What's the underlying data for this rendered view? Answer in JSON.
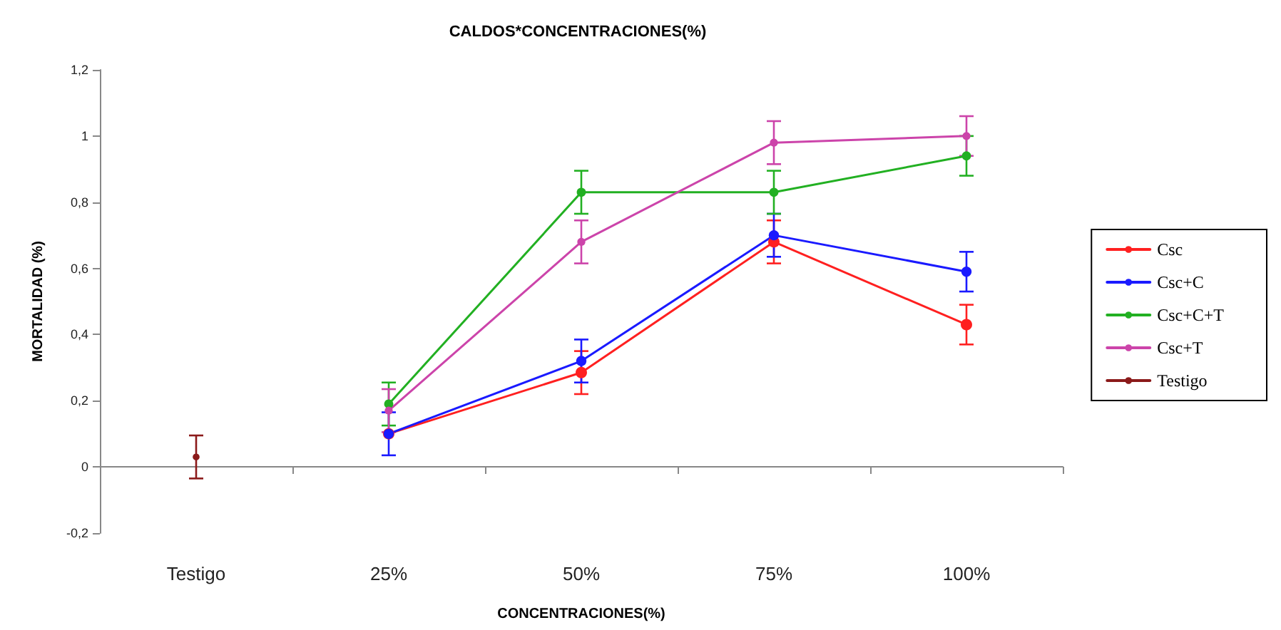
{
  "chart_data": {
    "type": "line",
    "title": "CALDOS*CONCENTRACIONES(%)",
    "xlabel": "CONCENTRACIONES(%)",
    "ylabel": "MORTALIDAD (%)",
    "categories": [
      "Testigo",
      "25%",
      "50%",
      "75%",
      "100%"
    ],
    "series": [
      {
        "name": "Csc",
        "color": "#ff2020",
        "values": [
          null,
          0.1,
          0.285,
          0.68,
          0.43
        ],
        "errors": [
          null,
          null,
          0.065,
          0.065,
          0.06
        ]
      },
      {
        "name": "Csc+C",
        "color": "#1a1aff",
        "values": [
          null,
          0.1,
          0.32,
          0.7,
          0.59
        ],
        "errors": [
          null,
          0.065,
          0.065,
          0.065,
          0.06
        ]
      },
      {
        "name": "Csc+C+T",
        "color": "#22b022",
        "values": [
          null,
          0.19,
          0.83,
          0.83,
          0.94
        ],
        "errors": [
          null,
          0.065,
          0.065,
          0.065,
          0.06
        ]
      },
      {
        "name": "Csc+T",
        "color": "#cc44aa",
        "values": [
          null,
          0.17,
          0.68,
          0.98,
          1.0
        ],
        "errors": [
          null,
          0.065,
          0.065,
          0.065,
          0.06
        ]
      },
      {
        "name": "Testigo",
        "color": "#8b1a1a",
        "values": [
          0.03,
          null,
          null,
          null,
          null
        ],
        "errors": [
          0.065,
          null,
          null,
          null,
          null
        ]
      }
    ],
    "ylim": [
      -0.2,
      1.2
    ],
    "yticks": [
      {
        "value": -0.2,
        "label": "-0,2"
      },
      0,
      {
        "value": 0.2,
        "label": "0,2"
      },
      {
        "value": 0.4,
        "label": "0,4"
      },
      {
        "value": 0.6,
        "label": "0,6"
      },
      {
        "value": 0.8,
        "label": "0,8"
      },
      1,
      {
        "value": 1.2,
        "label": "1,2"
      }
    ],
    "legend": "right",
    "marker": "circle",
    "line_style": "solid"
  }
}
